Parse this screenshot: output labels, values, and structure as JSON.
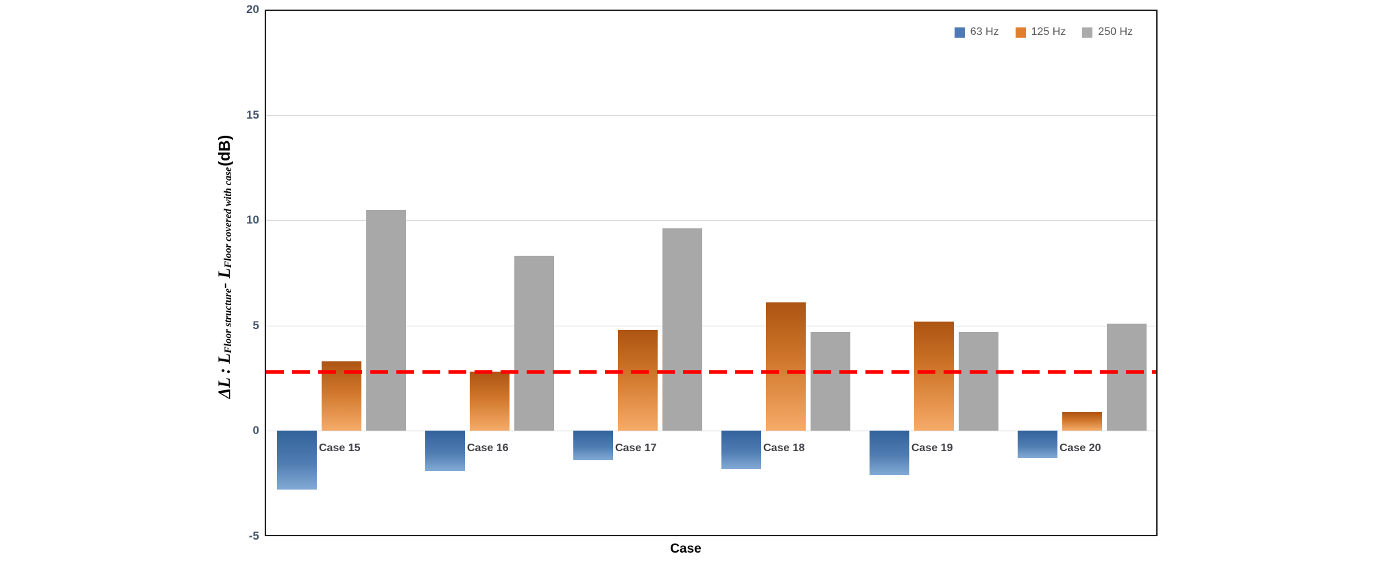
{
  "chart_data": {
    "type": "bar",
    "xlabel": "Case",
    "ylabel_parts": {
      "prefix": "ΔL : L",
      "sub1": "Floor structure",
      "mid": " - L",
      "sub2": "Floor covered with case",
      "suffix": "(dB)"
    },
    "categories": [
      "Case 15",
      "Case 16",
      "Case 17",
      "Case 18",
      "Case 19",
      "Case 20"
    ],
    "series": [
      {
        "name": "63 Hz",
        "color": "#4e79b4",
        "values": [
          -2.8,
          -1.9,
          -1.4,
          -1.8,
          -2.1,
          -1.3
        ]
      },
      {
        "name": "125 Hz",
        "color": "#e0802f",
        "values": [
          3.3,
          2.8,
          4.8,
          6.1,
          5.2,
          0.9
        ]
      },
      {
        "name": "250 Hz",
        "color": "#ababab",
        "values": [
          10.5,
          8.3,
          9.6,
          4.7,
          4.7,
          5.1
        ]
      }
    ],
    "ylim": [
      -5,
      20
    ],
    "yticks": [
      20,
      15,
      10,
      5,
      0,
      -5
    ],
    "gridline_values": [
      15,
      10,
      5,
      0
    ],
    "grid": true,
    "legend_position": "top-right",
    "reference_line": {
      "value": 2.8,
      "color": "#ff0000",
      "style": "dashed"
    }
  }
}
